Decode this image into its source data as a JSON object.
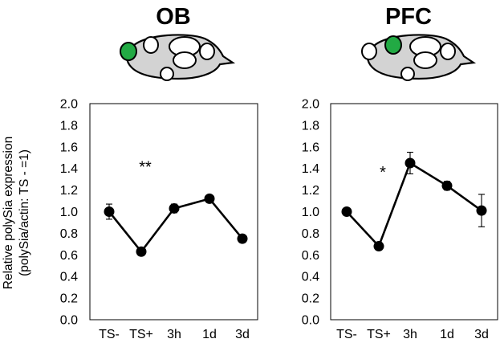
{
  "ylabel_line1": "Relative polySia expression",
  "ylabel_line2": "(polySia/actin: TS - =1)",
  "highlight_color": "#22aa44",
  "chart_data": [
    {
      "type": "line",
      "title": "OB",
      "categories": [
        "TS-",
        "TS+",
        "3h",
        "1d",
        "3d"
      ],
      "values": [
        1.0,
        0.63,
        1.03,
        1.12,
        0.75
      ],
      "errors": [
        0.07,
        0.02,
        0.04,
        0.03,
        0.02
      ],
      "ylim": [
        0.0,
        2.0
      ],
      "yticks": [
        "0.0",
        "0.2",
        "0.4",
        "0.6",
        "0.8",
        "1.0",
        "1.2",
        "1.4",
        "1.6",
        "1.8",
        "2.0"
      ],
      "annotation": {
        "text": "**",
        "category": "TS+",
        "y": 1.44
      },
      "brain_icon_highlight": "olfactory-bulb"
    },
    {
      "type": "line",
      "title": "PFC",
      "categories": [
        "TS-",
        "TS+",
        "3h",
        "1d",
        "3d"
      ],
      "values": [
        1.0,
        0.68,
        1.45,
        1.24,
        1.01
      ],
      "errors": [
        0.01,
        0.03,
        0.1,
        0.04,
        0.15
      ],
      "ylim": [
        0.0,
        2.0
      ],
      "yticks": [
        "0.0",
        "0.2",
        "0.4",
        "0.6",
        "0.8",
        "1.0",
        "1.2",
        "1.4",
        "1.6",
        "1.8",
        "2.0"
      ],
      "annotation": {
        "text": "*",
        "category": "TS+",
        "y": 1.39
      },
      "brain_icon_highlight": "prefrontal-cortex"
    }
  ]
}
